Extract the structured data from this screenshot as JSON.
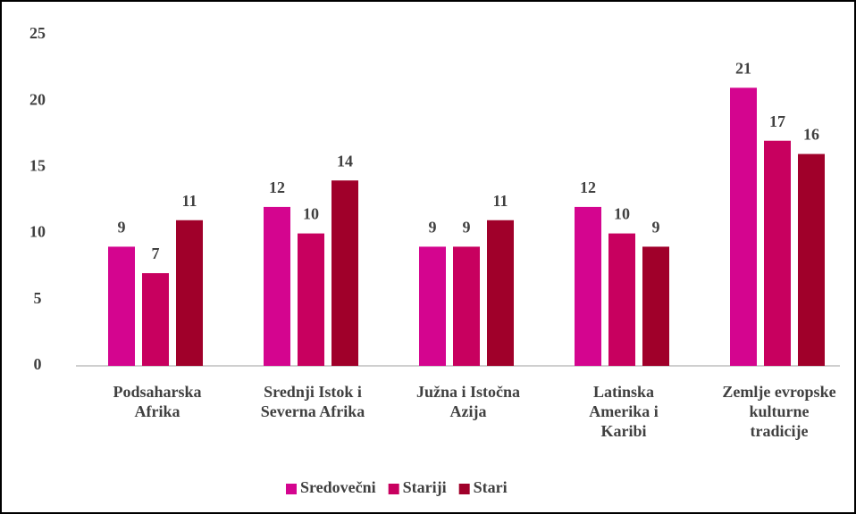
{
  "chart_data": {
    "type": "bar",
    "categories": [
      "Podsaharska\nAfrika",
      "Srednji Istok i\nSeverna Afrika",
      "Južna i Istočna\nAzija",
      "Latinska\nAmerika i\nKaribi",
      "Zemlje evropske\nkulturne\ntradicije"
    ],
    "series": [
      {
        "name": "Sredovečni",
        "color": "#d4058f",
        "values": [
          9,
          12,
          9,
          12,
          21
        ]
      },
      {
        "name": "Stariji",
        "color": "#c8005f",
        "values": [
          7,
          10,
          9,
          10,
          17
        ]
      },
      {
        "name": "Stari",
        "color": "#a0002a",
        "values": [
          11,
          14,
          11,
          9,
          16
        ]
      }
    ],
    "ylim": [
      0,
      25
    ],
    "yticks": [
      0,
      5,
      10,
      15,
      20,
      25
    ],
    "grid": false,
    "legend": "bottom"
  }
}
